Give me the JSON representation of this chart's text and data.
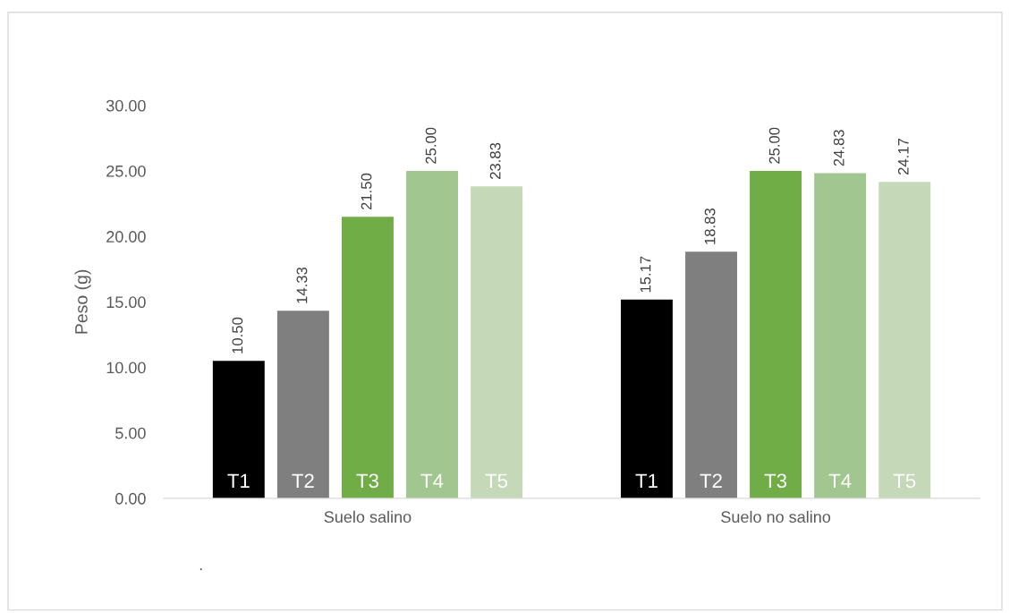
{
  "chart_data": {
    "type": "bar",
    "ylabel": "Peso (g)",
    "categories": [
      "Suelo salino",
      "Suelo no salino"
    ],
    "series": [
      {
        "name": "T1",
        "color": "#000000",
        "values": [
          10.5,
          15.17
        ],
        "value_labels": [
          "10.50",
          "15.17"
        ]
      },
      {
        "name": "T2",
        "color": "#7f7f7f",
        "values": [
          14.33,
          18.83
        ],
        "value_labels": [
          "14.33",
          "18.83"
        ]
      },
      {
        "name": "T3",
        "color": "#70ad47",
        "values": [
          21.5,
          25.0
        ],
        "value_labels": [
          "21.50",
          "25.00"
        ]
      },
      {
        "name": "T4",
        "color": "#a2c68f",
        "values": [
          25.0,
          24.83
        ],
        "value_labels": [
          "25.00",
          "24.83"
        ]
      },
      {
        "name": "T5",
        "color": "#c5d9b8",
        "values": [
          23.83,
          24.17
        ],
        "value_labels": [
          "23.83",
          "24.17"
        ]
      }
    ],
    "ylim": [
      0,
      30
    ],
    "yticks": [
      {
        "value": 0,
        "label": "0.00"
      },
      {
        "value": 5,
        "label": "5.00"
      },
      {
        "value": 10,
        "label": "10.00"
      },
      {
        "value": 15,
        "label": "15.00"
      },
      {
        "value": 20,
        "label": "20.00"
      },
      {
        "value": 25,
        "label": "25.00"
      },
      {
        "value": 30,
        "label": "30.00"
      }
    ],
    "annotations": [
      "."
    ]
  }
}
